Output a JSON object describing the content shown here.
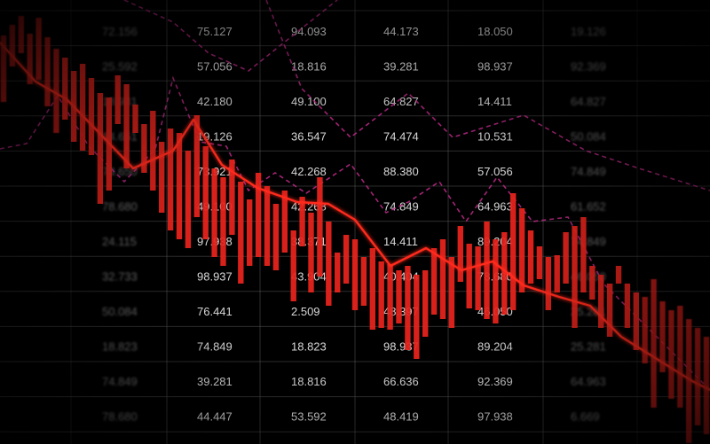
{
  "chart_data": {
    "type": "bar",
    "colors": {
      "background": "#000000",
      "bars": "#e8231c",
      "trend_line": "#ff2a1f",
      "dashed_line": "#c02a8a",
      "grid": "#5a5a5a",
      "text": "#e8e8e8"
    },
    "grid": true,
    "table": {
      "columns": [
        [
          "72.156",
          "25.592",
          "18.931",
          "14.651",
          "73.650",
          "78.680",
          "24.115",
          "32.733",
          "50.084",
          "18.823",
          "74.849",
          "78.680"
        ],
        [
          "75.127",
          "57.056",
          "42.180",
          "19.126",
          "73.921",
          "49.100",
          "97.938",
          "98.937",
          "76.441",
          "74.849",
          "39.281",
          "44.447"
        ],
        [
          "94.093",
          "18.816",
          "49.100",
          "36.547",
          "42.268",
          "42.268",
          "38.371",
          "43.904",
          "2.509",
          "18.823",
          "18.816",
          "53.592"
        ],
        [
          "44.173",
          "39.281",
          "64.827",
          "74.474",
          "88.380",
          "74.849",
          "14.411",
          "40.404",
          "48.397",
          "98.937",
          "66.636",
          "48.419"
        ],
        [
          "18.050",
          "98.937",
          "14.411",
          "10.531",
          "57.056",
          "64.963",
          "89.204",
          "78.680",
          "46.050",
          "89.204",
          "92.369",
          "97.938"
        ],
        [
          "19.126",
          "92.369",
          "64.827",
          "50.084",
          "74.849",
          "61.652",
          "74.849",
          "46.050",
          "25.281",
          "25.281",
          "64.963",
          "6.669"
        ]
      ]
    },
    "bars": [
      [
        40,
        115
      ],
      [
        28,
        75
      ],
      [
        18,
        60
      ],
      [
        38,
        95
      ],
      [
        20,
        90
      ],
      [
        42,
        120
      ],
      [
        55,
        150
      ],
      [
        65,
        135
      ],
      [
        80,
        160
      ],
      [
        72,
        170
      ],
      [
        88,
        175
      ],
      [
        105,
        230
      ],
      [
        110,
        215
      ],
      [
        85,
        140
      ],
      [
        95,
        190
      ],
      [
        118,
        150
      ],
      [
        140,
        195
      ],
      [
        125,
        215
      ],
      [
        160,
        240
      ],
      [
        145,
        260
      ],
      [
        150,
        270
      ],
      [
        170,
        280
      ],
      [
        130,
        245
      ],
      [
        165,
        270
      ],
      [
        190,
        290
      ],
      [
        200,
        300
      ],
      [
        180,
        265
      ],
      [
        205,
        320
      ],
      [
        225,
        300
      ],
      [
        195,
        290
      ],
      [
        210,
        300
      ],
      [
        230,
        305
      ],
      [
        215,
        285
      ],
      [
        260,
        340
      ],
      [
        222,
        278
      ],
      [
        240,
        330
      ],
      [
        200,
        312
      ],
      [
        250,
        345
      ],
      [
        285,
        330
      ],
      [
        265,
        320
      ],
      [
        270,
        350
      ],
      [
        290,
        345
      ],
      [
        280,
        372
      ],
      [
        295,
        370
      ],
      [
        298,
        372
      ],
      [
        305,
        365
      ],
      [
        300,
        395
      ],
      [
        310,
        405
      ],
      [
        305,
        380
      ],
      [
        280,
        355
      ],
      [
        270,
        360
      ],
      [
        290,
        370
      ],
      [
        255,
        318
      ],
      [
        275,
        348
      ],
      [
        278,
        350
      ],
      [
        250,
        360
      ],
      [
        270,
        365
      ],
      [
        262,
        355
      ],
      [
        218,
        350
      ],
      [
        235,
        330
      ],
      [
        260,
        320
      ],
      [
        278,
        315
      ],
      [
        290,
        350
      ],
      [
        288,
        330
      ],
      [
        262,
        320
      ],
      [
        255,
        370
      ],
      [
        245,
        330
      ],
      [
        300,
        338
      ],
      [
        310,
        370
      ],
      [
        320,
        380
      ],
      [
        300,
        320
      ],
      [
        320,
        370
      ],
      [
        330,
        395
      ],
      [
        335,
        410
      ],
      [
        315,
        460
      ],
      [
        340,
        420
      ],
      [
        350,
        450
      ],
      [
        345,
        460
      ],
      [
        360,
        500
      ],
      [
        370,
        480
      ],
      [
        380,
        490
      ]
    ],
    "trend_line": [
      [
        0,
        48
      ],
      [
        40,
        92
      ],
      [
        75,
        112
      ],
      [
        110,
        148
      ],
      [
        150,
        190
      ],
      [
        195,
        170
      ],
      [
        218,
        135
      ],
      [
        250,
        186
      ],
      [
        290,
        212
      ],
      [
        335,
        228
      ],
      [
        370,
        230
      ],
      [
        400,
        248
      ],
      [
        440,
        300
      ],
      [
        480,
        280
      ],
      [
        520,
        305
      ],
      [
        555,
        295
      ],
      [
        590,
        322
      ],
      [
        630,
        335
      ],
      [
        665,
        345
      ],
      [
        700,
        380
      ],
      [
        740,
        405
      ],
      [
        780,
        430
      ],
      [
        800,
        440
      ]
    ],
    "dashed_line": [
      [
        0,
        168
      ],
      [
        30,
        162
      ],
      [
        65,
        108
      ],
      [
        100,
        165
      ],
      [
        140,
        205
      ],
      [
        175,
        168
      ],
      [
        195,
        88
      ],
      [
        225,
        160
      ],
      [
        255,
        165
      ],
      [
        280,
        215
      ],
      [
        310,
        195
      ],
      [
        345,
        218
      ],
      [
        395,
        185
      ],
      [
        435,
        240
      ],
      [
        460,
        228
      ],
      [
        495,
        205
      ],
      [
        525,
        250
      ],
      [
        560,
        200
      ],
      [
        600,
        250
      ],
      [
        640,
        245
      ],
      [
        680,
        320
      ],
      [
        720,
        360
      ],
      [
        760,
        400
      ],
      [
        800,
        440
      ]
    ],
    "dashed_line_top": [
      [
        140,
        0
      ],
      [
        195,
        25
      ],
      [
        235,
        60
      ],
      [
        280,
        80
      ],
      [
        330,
        40
      ],
      [
        380,
        0
      ]
    ],
    "dashed_line_top2": [
      [
        300,
        0
      ],
      [
        340,
        100
      ],
      [
        395,
        155
      ],
      [
        460,
        105
      ],
      [
        510,
        155
      ],
      [
        590,
        130
      ],
      [
        660,
        170
      ],
      [
        720,
        190
      ],
      [
        800,
        215
      ]
    ]
  }
}
